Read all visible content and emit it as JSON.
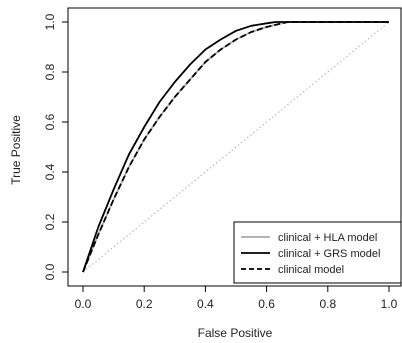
{
  "chart_data": {
    "type": "line",
    "xlabel": "False Positive",
    "ylabel": "True Positive",
    "xlim": [
      0,
      1
    ],
    "ylim": [
      0,
      1
    ],
    "xticks": [
      "0.0",
      "0.2",
      "0.4",
      "0.6",
      "0.8",
      "1.0"
    ],
    "yticks": [
      "0.0",
      "0.2",
      "0.4",
      "0.6",
      "0.8",
      "1.0"
    ],
    "grid": false,
    "legend_position": "bottom-right",
    "reference_line": {
      "x": [
        0,
        1
      ],
      "y": [
        0,
        1
      ],
      "style": "dotted",
      "color": "#b0b0b0"
    },
    "series": [
      {
        "name": "clinical + HLA model",
        "color": "#aaaaaa",
        "dash": "solid",
        "x": [
          0,
          0.05,
          0.1,
          0.15,
          0.2,
          0.25,
          0.3,
          0.35,
          0.4,
          0.45,
          0.5,
          0.55,
          0.6,
          0.65,
          0.67,
          0.7,
          0.8,
          0.9,
          1.0
        ],
        "y": [
          0,
          0.15,
          0.29,
          0.42,
          0.53,
          0.62,
          0.7,
          0.77,
          0.84,
          0.89,
          0.93,
          0.96,
          0.98,
          0.995,
          1.0,
          1.0,
          1.0,
          1.0,
          1.0
        ]
      },
      {
        "name": "clinical + GRS model",
        "color": "#000000",
        "dash": "solid",
        "x": [
          0,
          0.05,
          0.1,
          0.15,
          0.2,
          0.25,
          0.3,
          0.35,
          0.4,
          0.45,
          0.5,
          0.55,
          0.6,
          0.63,
          0.7,
          0.8,
          0.9,
          1.0
        ],
        "y": [
          0,
          0.18,
          0.33,
          0.47,
          0.58,
          0.68,
          0.76,
          0.83,
          0.89,
          0.93,
          0.965,
          0.985,
          0.995,
          1.0,
          1.0,
          1.0,
          1.0,
          1.0
        ]
      },
      {
        "name": "clinical model",
        "color": "#000000",
        "dash": "dashed",
        "x": [
          0,
          0.05,
          0.1,
          0.15,
          0.2,
          0.25,
          0.3,
          0.35,
          0.4,
          0.45,
          0.5,
          0.55,
          0.6,
          0.65,
          0.67,
          0.7,
          0.8,
          0.9,
          1.0
        ],
        "y": [
          0,
          0.15,
          0.29,
          0.42,
          0.53,
          0.62,
          0.7,
          0.77,
          0.84,
          0.89,
          0.93,
          0.96,
          0.98,
          0.995,
          1.0,
          1.0,
          1.0,
          1.0,
          1.0
        ]
      }
    ]
  }
}
